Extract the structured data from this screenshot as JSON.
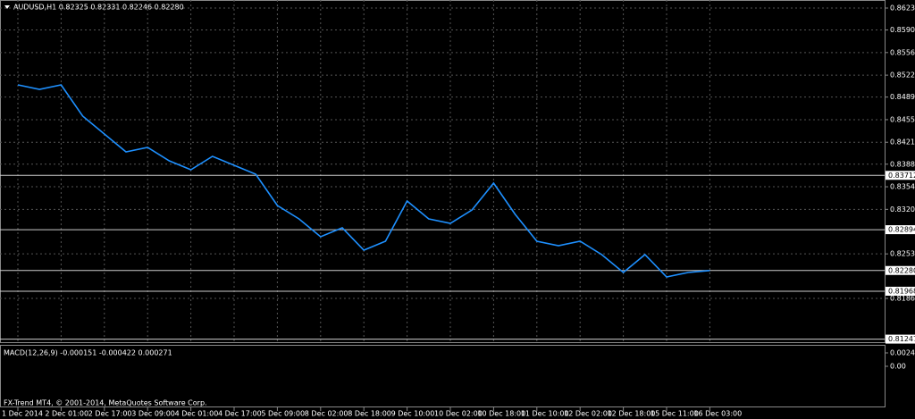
{
  "chart_data": {
    "type": "line",
    "title": "AUDUSD,H1  0.82325 0.82331 0.82246 0.82280",
    "categories": [
      "1 Dec 2014",
      null,
      "2 Dec 01:00",
      null,
      "2 Dec 17:00",
      null,
      "3 Dec 09:00",
      null,
      "4 Dec 01:00",
      null,
      "4 Dec 17:00",
      null,
      "5 Dec 09:00",
      null,
      "8 Dec 02:00",
      null,
      "8 Dec 18:00",
      null,
      "9 Dec 10:00",
      null,
      "10 Dec 02:00",
      null,
      "10 Dec 18:00",
      null,
      "11 Dec 10:00",
      null,
      "12 Dec 02:00",
      null,
      "12 Dec 18:00",
      null,
      "15 Dec 11:00",
      null,
      "16 Dec 03:00"
    ],
    "values": [
      0.85074,
      0.85006,
      0.85074,
      0.84603,
      0.84334,
      0.84065,
      0.84132,
      0.83931,
      0.83796,
      0.83998,
      0.83863,
      0.83729,
      0.83258,
      0.83057,
      0.82788,
      0.82922,
      0.82586,
      0.82721,
      0.83326,
      0.83057,
      0.82989,
      0.83191,
      0.83595,
      0.83124,
      0.82721,
      0.82653,
      0.82721,
      0.82519,
      0.8225,
      0.82519,
      0.82183,
      0.8225,
      0.8228
    ],
    "color": "#1e90ff",
    "ylim": [
      0.81201,
      0.86351
    ],
    "yticks": [
      {
        "value": 0.8623,
        "label": "0.86230"
      },
      {
        "value": 0.859,
        "label": "0.85900"
      },
      {
        "value": 0.8556,
        "label": "0.85560"
      },
      {
        "value": 0.8522,
        "label": "0.85220"
      },
      {
        "value": 0.8489,
        "label": "0.84890"
      },
      {
        "value": 0.8455,
        "label": "0.84550"
      },
      {
        "value": 0.8421,
        "label": "0.84210"
      },
      {
        "value": 0.8388,
        "label": "0.83880"
      },
      {
        "value": 0.8354,
        "label": "0.83540"
      },
      {
        "value": 0.832,
        "label": "0.83200"
      },
      {
        "value": 0.8253,
        "label": "0.82530"
      },
      {
        "value": 0.8186,
        "label": "0.81860"
      }
    ],
    "levels": [
      0.83712,
      0.82894,
      {
        "value": 0.8228,
        "label": "0.82280"
      },
      0.81968,
      0.81247
    ],
    "grid": true,
    "macd": {
      "label": "MACD(12,26,9) -0.000151 -0.000422 0.000271",
      "ylim": [
        -0.0072,
        0.00368
      ],
      "yticks": [
        0.0024,
        {
          "value": 0,
          "label": "0.00"
        }
      ]
    },
    "footer": "FX-Trend MT4, © 2001-2014, MetaQuotes Software Corp."
  }
}
